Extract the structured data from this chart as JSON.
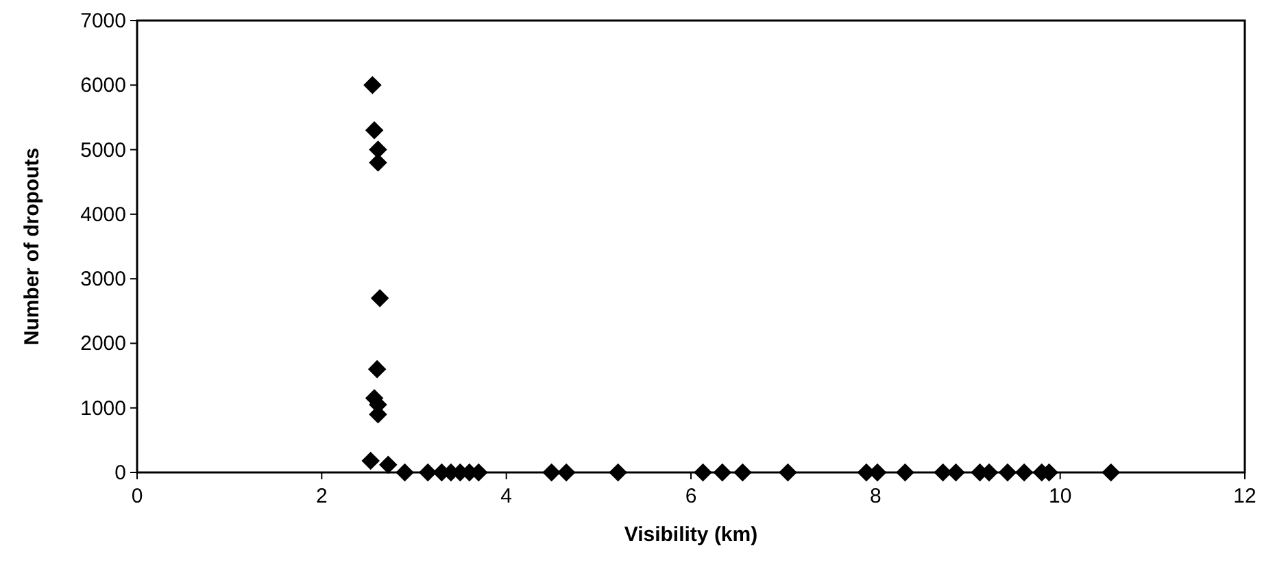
{
  "chart_data": {
    "type": "scatter",
    "xlabel": "Visibility (km)",
    "ylabel": "Number of dropouts",
    "marker": "diamond",
    "grid": false,
    "xlim": [
      0,
      12
    ],
    "xticks": [
      0,
      2,
      4,
      6,
      8,
      10,
      12
    ],
    "ylim": [
      0,
      7000
    ],
    "yticks": [
      0,
      1000,
      2000,
      3000,
      4000,
      5000,
      6000,
      7000
    ],
    "series": [
      {
        "color": "#000000",
        "x": [
          2.55,
          2.57,
          2.61,
          2.61,
          2.63,
          2.6,
          2.57,
          2.61,
          2.61,
          2.53,
          2.72,
          2.9,
          3.15,
          3.3,
          3.4,
          3.5,
          3.6,
          3.7,
          4.49,
          4.65,
          5.21,
          6.13,
          6.34,
          6.56,
          7.05,
          7.9,
          8.02,
          8.32,
          8.73,
          8.87,
          9.13,
          9.23,
          9.43,
          9.61,
          9.8,
          9.88,
          10.55
        ],
        "values": [
          6000,
          5300,
          5000,
          4800,
          2700,
          1600,
          1150,
          1050,
          900,
          180,
          120,
          0,
          0,
          0,
          0,
          0,
          0,
          0,
          0,
          0,
          0,
          0,
          0,
          0,
          0,
          0,
          0,
          0,
          0,
          0,
          0,
          0,
          0,
          0,
          0,
          0,
          0
        ]
      }
    ]
  }
}
